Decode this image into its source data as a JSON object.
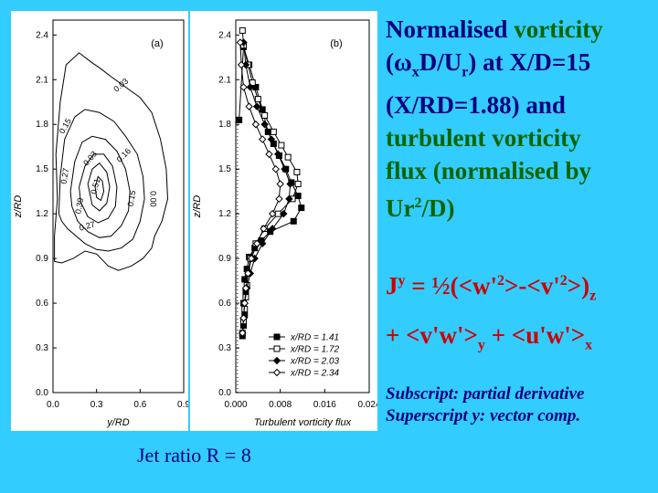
{
  "title": {
    "t1": "Normalised ",
    "t2": "vorticity",
    "t3": "(ω",
    "t3sub": "x",
    "t4": "D/U",
    "t4sub": "r",
    "t5": ") at X/D=15",
    "t6": "(X/RD=1.88) and",
    "t7": "turbulent vorticity",
    "t8": "flux (normalised by",
    "t9": "Ur",
    "t9sup": "2",
    "t10": "/D)"
  },
  "equation": {
    "j": "J",
    "jsup": "y",
    "e1": " = ½(<w'",
    "e1sup": "2",
    "e2": ">-<v'",
    "e2sup": "2",
    "e3": ">)",
    "e3sub": "z",
    "f1": "+ <v'w'>",
    "f1sub": "y",
    "f2": " + <u'w'>",
    "f2sub": "x"
  },
  "notes": {
    "line1": "Subscript: partial derivative",
    "line2": "Superscript y: vector comp."
  },
  "jet_ratio": "Jet ratio R = 8",
  "colors": {
    "background": "#33ccff",
    "title": "#000080",
    "highlight": "#006400",
    "equation": "#cc0000"
  },
  "chart_data": [
    {
      "type": "contour",
      "panel_label": "(a)",
      "xlabel": "y/RD",
      "ylabel": "z/RD",
      "xlim": [
        0,
        0.9
      ],
      "ylim": [
        0,
        2.5
      ],
      "xticks": [
        "0.0",
        "0.3",
        "0.6",
        "0.9"
      ],
      "yticks": [
        "0.0",
        "0.3",
        "0.6",
        "0.9",
        "1.2",
        "1.5",
        "1.8",
        "2.1",
        "2.4"
      ],
      "contour_levels": [
        "0.03",
        "0.15",
        "0.27",
        "0.39",
        "0.51",
        "0.03",
        "0.16",
        "0.15",
        "0.27",
        "0.00"
      ],
      "contours": [
        {
          "level": "0.00",
          "x": [
            0.01,
            0.01,
            0.03,
            0.02,
            0.05,
            0.09,
            0.18,
            0.26,
            0.32,
            0.4,
            0.5,
            0.6,
            0.68,
            0.74,
            0.78,
            0.79,
            0.75,
            0.7,
            0.68,
            0.62,
            0.54,
            0.45,
            0.38,
            0.3,
            0.22,
            0.14,
            0.06,
            0.01
          ],
          "y": [
            0.88,
            1.05,
            1.3,
            1.6,
            1.95,
            2.2,
            2.28,
            2.22,
            2.18,
            2.12,
            2.05,
            1.98,
            1.88,
            1.7,
            1.5,
            1.3,
            1.15,
            1.05,
            0.97,
            0.9,
            0.85,
            0.82,
            0.85,
            0.93,
            0.95,
            0.9,
            0.87,
            0.88
          ]
        },
        {
          "level": "0.03",
          "x": [
            0.04,
            0.05,
            0.08,
            0.15,
            0.22,
            0.32,
            0.42,
            0.5,
            0.58,
            0.62,
            0.63,
            0.6,
            0.55,
            0.47,
            0.38,
            0.3,
            0.22,
            0.16,
            0.1,
            0.06,
            0.04
          ],
          "y": [
            1.2,
            1.45,
            1.7,
            1.85,
            1.9,
            1.88,
            1.82,
            1.72,
            1.6,
            1.45,
            1.3,
            1.15,
            1.03,
            0.97,
            0.95,
            0.96,
            1.0,
            1.05,
            1.1,
            1.15,
            1.2
          ]
        },
        {
          "level": "0.15",
          "x": [
            0.12,
            0.15,
            0.2,
            0.27,
            0.36,
            0.44,
            0.5,
            0.53,
            0.52,
            0.47,
            0.4,
            0.32,
            0.24,
            0.17,
            0.13,
            0.12
          ],
          "y": [
            1.35,
            1.55,
            1.68,
            1.72,
            1.7,
            1.62,
            1.5,
            1.35,
            1.22,
            1.12,
            1.05,
            1.04,
            1.08,
            1.15,
            1.25,
            1.35
          ]
        },
        {
          "level": "0.27",
          "x": [
            0.18,
            0.22,
            0.28,
            0.35,
            0.41,
            0.44,
            0.43,
            0.38,
            0.31,
            0.24,
            0.19,
            0.18
          ],
          "y": [
            1.38,
            1.52,
            1.6,
            1.6,
            1.52,
            1.38,
            1.25,
            1.17,
            1.14,
            1.18,
            1.28,
            1.38
          ]
        },
        {
          "level": "0.39",
          "x": [
            0.24,
            0.27,
            0.32,
            0.37,
            0.39,
            0.37,
            0.32,
            0.27,
            0.24
          ],
          "y": [
            1.4,
            1.5,
            1.54,
            1.48,
            1.38,
            1.27,
            1.22,
            1.26,
            1.4
          ]
        },
        {
          "level": "0.51",
          "x": [
            0.29,
            0.31,
            0.34,
            0.35,
            0.33,
            0.3,
            0.29
          ],
          "y": [
            1.38,
            1.45,
            1.42,
            1.35,
            1.29,
            1.31,
            1.38
          ]
        }
      ]
    },
    {
      "type": "line",
      "panel_label": "(b)",
      "xlabel": "Turbulent vorticity flux",
      "ylabel": "z/RD",
      "xlim": [
        0,
        0.024
      ],
      "ylim": [
        0,
        2.5
      ],
      "xticks": [
        "0.000",
        "0.008",
        "0.016",
        "0.024"
      ],
      "yticks": [
        "0.0",
        "0.3",
        "0.6",
        "0.9",
        "1.2",
        "1.5",
        "1.8",
        "2.1",
        "2.4"
      ],
      "legend_position": "bottom-right",
      "series": [
        {
          "name": "x/RD = 1.41",
          "marker": "filled-square",
          "x": [
            0.0012,
            0.0014,
            0.0016,
            0.0014,
            0.0018,
            0.0016,
            0.002,
            0.0024,
            0.0034,
            0.0046,
            0.0062,
            0.0104,
            0.0118,
            0.0112,
            0.01,
            0.009,
            0.0078,
            0.0068,
            0.0058,
            0.0048,
            0.0036,
            0.0024,
            0.0014,
            0.0006
          ],
          "y": [
            0.38,
            0.45,
            0.52,
            0.6,
            0.68,
            0.76,
            0.83,
            0.91,
            0.97,
            1.02,
            1.08,
            1.15,
            1.24,
            1.32,
            1.41,
            1.5,
            1.59,
            1.67,
            1.75,
            1.9,
            2.05,
            2.2,
            2.32,
            1.83
          ]
        },
        {
          "name": "x/RD = 1.72",
          "marker": "open-square",
          "x": [
            0.0012,
            0.0014,
            0.0016,
            0.0018,
            0.002,
            0.0022,
            0.0026,
            0.0036,
            0.0052,
            0.0076,
            0.0102,
            0.0112,
            0.011,
            0.0094,
            0.0082,
            0.0068,
            0.0052,
            0.004,
            0.003,
            0.0022,
            0.0014,
            0.0012
          ],
          "y": [
            0.4,
            0.48,
            0.56,
            0.64,
            0.72,
            0.8,
            0.9,
            1.0,
            1.1,
            1.2,
            1.3,
            1.4,
            1.48,
            1.58,
            1.66,
            1.75,
            1.86,
            1.97,
            2.08,
            2.2,
            2.33,
            2.43
          ]
        },
        {
          "name": "x/RD = 2.03",
          "marker": "filled-diamond",
          "x": [
            0.0012,
            0.0014,
            0.0016,
            0.002,
            0.0026,
            0.0034,
            0.0048,
            0.0066,
            0.0086,
            0.0096,
            0.0098,
            0.0088,
            0.0076,
            0.0064,
            0.0052,
            0.0038,
            0.0026,
            0.0018,
            0.0014
          ],
          "y": [
            0.4,
            0.5,
            0.6,
            0.7,
            0.8,
            0.9,
            1.0,
            1.1,
            1.2,
            1.3,
            1.4,
            1.5,
            1.6,
            1.7,
            1.8,
            1.92,
            2.05,
            2.2,
            2.35
          ]
        },
        {
          "name": "x/RD = 2.34",
          "marker": "open-diamond",
          "x": [
            0.0012,
            0.0014,
            0.0016,
            0.0018,
            0.0022,
            0.0028,
            0.0038,
            0.005,
            0.0066,
            0.0078,
            0.008,
            0.0072,
            0.006,
            0.0048,
            0.0036,
            0.0024,
            0.0014,
            0.001,
            0.0008
          ],
          "y": [
            0.4,
            0.5,
            0.6,
            0.7,
            0.8,
            0.9,
            1.0,
            1.1,
            1.2,
            1.3,
            1.4,
            1.5,
            1.6,
            1.7,
            1.8,
            1.92,
            2.05,
            2.2,
            2.35
          ]
        }
      ]
    }
  ]
}
